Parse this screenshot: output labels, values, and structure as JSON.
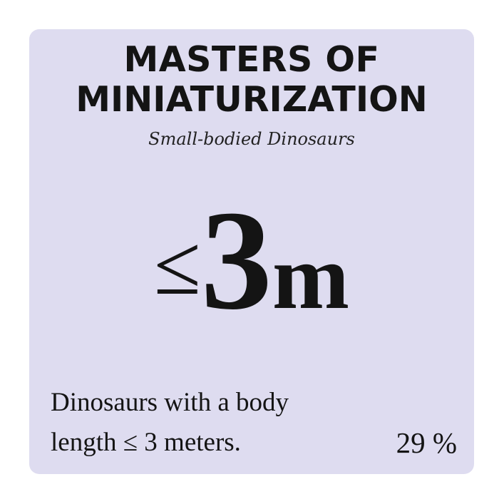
{
  "card": {
    "title_line1": "MASTERS OF",
    "title_line2": "MINIATURIZATION",
    "subtitle": "Small-bodied Dinosaurs",
    "value": {
      "symbol": "≤",
      "number": "3",
      "unit": "m"
    },
    "description_line1": "Dinosaurs with a body",
    "description_line2": "length ≤ 3 meters.",
    "percentage": "29 %"
  },
  "colors": {
    "card_background": "#dedcf0",
    "text": "#141414"
  }
}
